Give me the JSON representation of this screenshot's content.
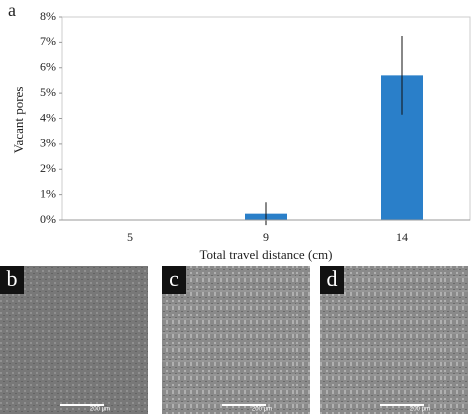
{
  "chart_data": {
    "type": "bar",
    "panel_label": "a",
    "x_label": "Total travel distance (cm)",
    "y_label": "Vacant pores",
    "categories": [
      "5",
      "9",
      "14"
    ],
    "values": [
      0,
      0.25,
      5.7
    ],
    "errors": [
      null,
      0.45,
      1.55
    ],
    "color": "#2a7fc9",
    "ylim": [
      0,
      8
    ],
    "yticks": [
      {
        "value": 0,
        "label": "0%"
      },
      {
        "value": 1,
        "label": "1%"
      },
      {
        "value": 2,
        "label": "2%"
      },
      {
        "value": 3,
        "label": "3%"
      },
      {
        "value": 4,
        "label": "4%"
      },
      {
        "value": 5,
        "label": "5%"
      },
      {
        "value": 6,
        "label": "6%"
      },
      {
        "value": 7,
        "label": "7%"
      },
      {
        "value": 8,
        "label": "8%"
      }
    ],
    "grid": false
  },
  "panels": [
    {
      "label": "b",
      "scale": "200 μm"
    },
    {
      "label": "c",
      "scale": "200 μm"
    },
    {
      "label": "d",
      "scale": "200 μm"
    }
  ]
}
